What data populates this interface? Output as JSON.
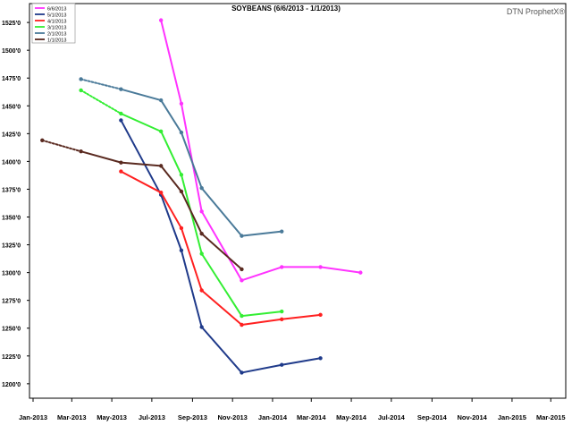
{
  "brand": "DTN ProphetX®",
  "chart_data": {
    "type": "line",
    "title": "SOYBEANS (6/6/2013 - 1/1/2013)",
    "xlabel": "",
    "ylabel": "",
    "x_ticks": [
      "Jan-2013",
      "Mar-2013",
      "May-2013",
      "Jul-2013",
      "Sep-2013",
      "Nov-2013",
      "Jan-2014",
      "Mar-2014",
      "May-2014",
      "Jul-2014",
      "Sep-2014",
      "Nov-2014",
      "Jan-2015",
      "Mar-2015"
    ],
    "y_ticks": [
      "1200'0",
      "1225'0",
      "1250'0",
      "1275'0",
      "1300'0",
      "1325'0",
      "1350'0",
      "1375'0",
      "1400'0",
      "1425'0",
      "1450'0",
      "1475'0",
      "1500'0",
      "1525'0"
    ],
    "y_values": [
      1200,
      1225,
      1250,
      1275,
      1300,
      1325,
      1350,
      1375,
      1400,
      1425,
      1450,
      1475,
      1500,
      1525
    ],
    "ylim": [
      1187,
      1542
    ],
    "grid": false,
    "legend": {
      "position": "top-left"
    },
    "series": [
      {
        "name": "6/6/2013",
        "color": "#ff33ff",
        "points": [
          [
            "2013-07-15",
            1527
          ],
          [
            "2013-08-15",
            1452
          ],
          [
            "2013-09-15",
            1355
          ],
          [
            "2013-11-15",
            1293
          ],
          [
            "2014-01-15",
            1305
          ],
          [
            "2014-03-15",
            1305
          ],
          [
            "2014-05-15",
            1300
          ]
        ]
      },
      {
        "name": "5/1/2013",
        "color": "#1f3a8a",
        "points": [
          [
            "2013-05-15",
            1437
          ],
          [
            "2013-07-15",
            1370
          ],
          [
            "2013-08-15",
            1320
          ],
          [
            "2013-09-15",
            1251
          ],
          [
            "2013-11-15",
            1210
          ],
          [
            "2014-01-15",
            1217
          ],
          [
            "2014-03-15",
            1223
          ]
        ]
      },
      {
        "name": "4/1/2013",
        "color": "#ff2020",
        "points": [
          [
            "2013-05-15",
            1391
          ],
          [
            "2013-07-15",
            1372
          ],
          [
            "2013-08-15",
            1340
          ],
          [
            "2013-09-15",
            1284
          ],
          [
            "2013-11-15",
            1253
          ],
          [
            "2014-01-15",
            1258
          ],
          [
            "2014-03-15",
            1262
          ]
        ]
      },
      {
        "name": "3/1/2013",
        "color": "#33ee33",
        "points": [
          [
            "2013-03-15",
            1464
          ],
          [
            "2013-05-15",
            1443
          ],
          [
            "2013-07-15",
            1427
          ],
          [
            "2013-08-15",
            1388
          ],
          [
            "2013-09-15",
            1317
          ],
          [
            "2013-11-15",
            1261
          ],
          [
            "2014-01-15",
            1265
          ]
        ]
      },
      {
        "name": "2/1/2013",
        "color": "#4a7a99",
        "points": [
          [
            "2013-03-15",
            1474
          ],
          [
            "2013-05-15",
            1465
          ],
          [
            "2013-07-15",
            1455
          ],
          [
            "2013-08-15",
            1426
          ],
          [
            "2013-09-15",
            1376
          ],
          [
            "2013-11-15",
            1333
          ],
          [
            "2014-01-15",
            1337
          ]
        ]
      },
      {
        "name": "1/1/2013",
        "color": "#5a2a20",
        "points": [
          [
            "2013-01-15",
            1419
          ],
          [
            "2013-03-15",
            1409
          ],
          [
            "2013-05-15",
            1399
          ],
          [
            "2013-07-15",
            1396
          ],
          [
            "2013-08-15",
            1373
          ],
          [
            "2013-09-15",
            1335
          ],
          [
            "2013-11-15",
            1303
          ]
        ]
      }
    ]
  }
}
